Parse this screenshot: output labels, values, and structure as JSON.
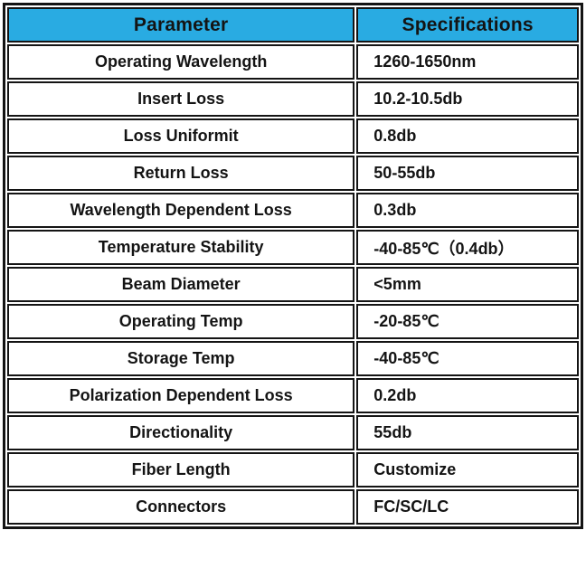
{
  "colors": {
    "header_background": "#29ABE2",
    "border": "#141414",
    "text": "#141414",
    "page_background": "#ffffff"
  },
  "table": {
    "columns": [
      "Parameter",
      "Specifications"
    ],
    "rows": [
      {
        "parameter": "Operating Wavelength",
        "specification": "1260-1650nm"
      },
      {
        "parameter": "Insert Loss",
        "specification": "10.2-10.5db"
      },
      {
        "parameter": "Loss Uniformit",
        "specification": "0.8db"
      },
      {
        "parameter": "Return Loss",
        "specification": "50-55db"
      },
      {
        "parameter": "Wavelength Dependent Loss",
        "specification": "0.3db"
      },
      {
        "parameter": "Temperature Stability",
        "specification": "-40-85℃（0.4db）"
      },
      {
        "parameter": "Beam Diameter",
        "specification": "<5mm"
      },
      {
        "parameter": "Operating Temp",
        "specification": "-20-85℃"
      },
      {
        "parameter": "Storage Temp",
        "specification": "-40-85℃"
      },
      {
        "parameter": "Polarization Dependent Loss",
        "specification": "0.2db"
      },
      {
        "parameter": "Directionality",
        "specification": "55db"
      },
      {
        "parameter": "Fiber Length",
        "specification": "Customize"
      },
      {
        "parameter": "Connectors",
        "specification": "FC/SC/LC"
      }
    ]
  }
}
